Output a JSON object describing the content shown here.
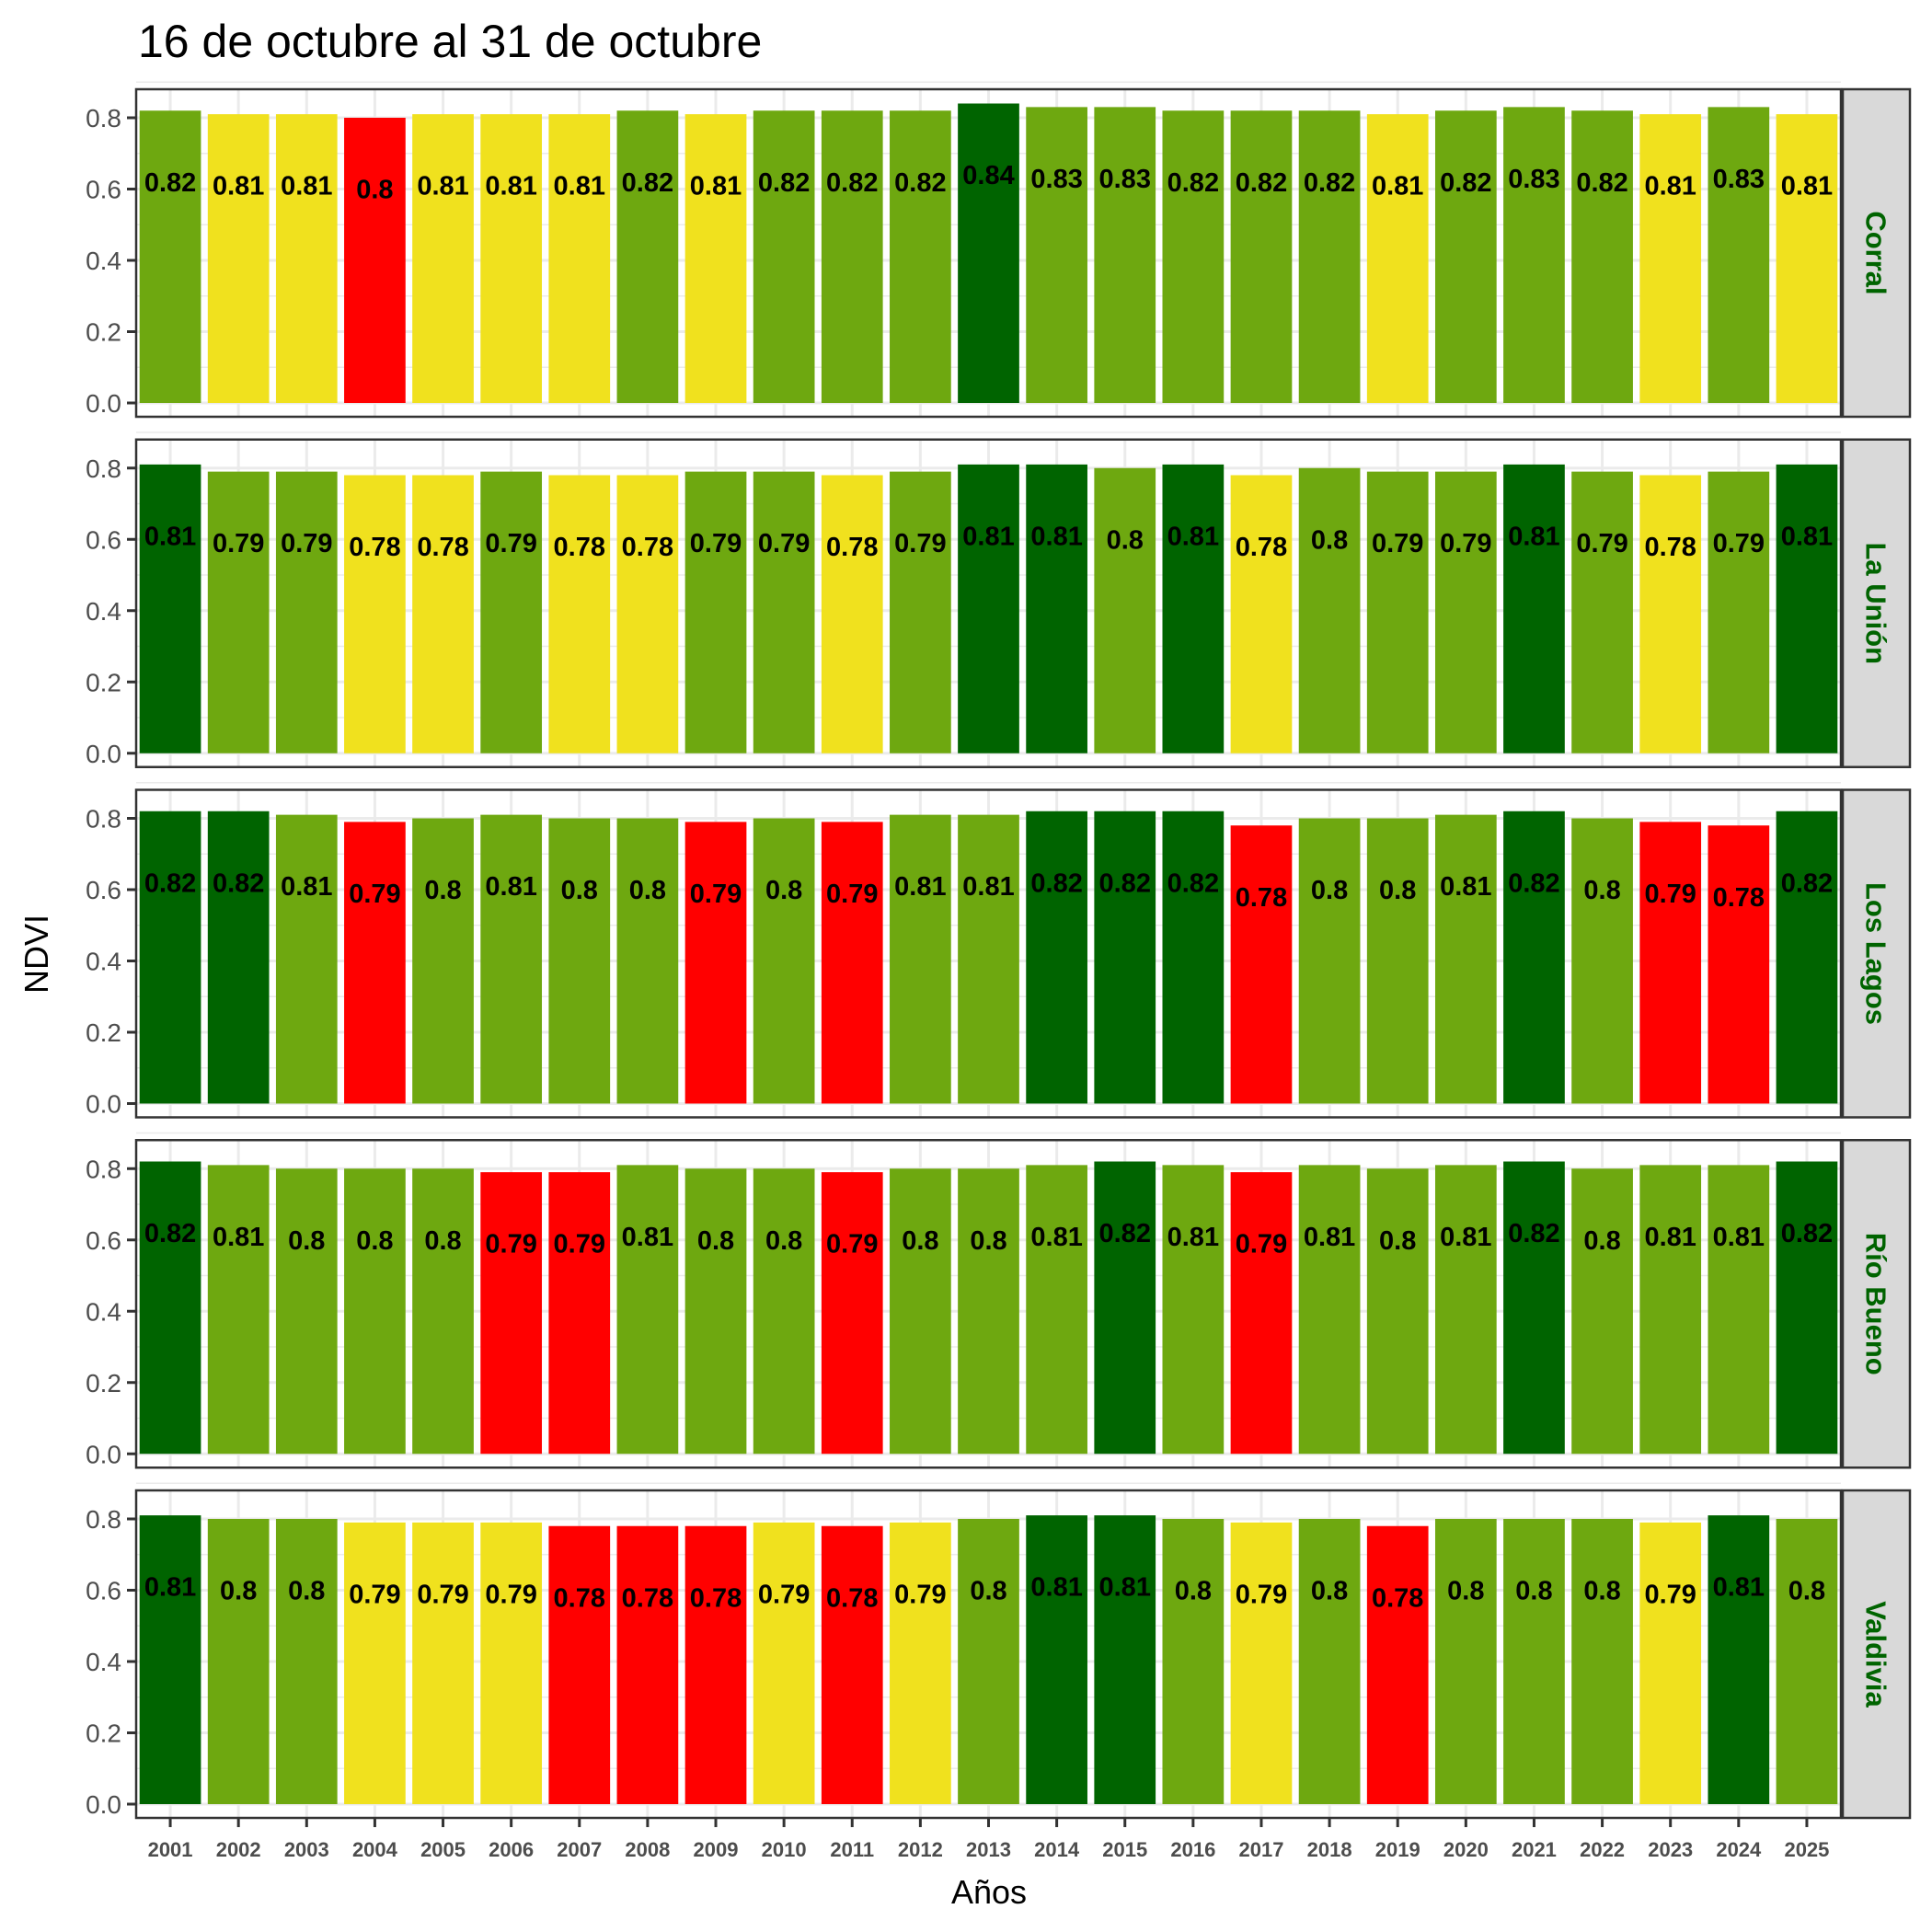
{
  "chart_data": {
    "type": "bar",
    "title": "16 de octubre al 31 de octubre",
    "xlabel": "Años",
    "ylabel": "NDVI",
    "ylim": [
      0,
      0.875
    ],
    "yticks": [
      "0.0",
      "0.2",
      "0.4",
      "0.6",
      "0.8"
    ],
    "ytick_values": [
      0,
      0.2,
      0.4,
      0.6,
      0.8
    ],
    "grid": true,
    "facet": "rows",
    "categories": [
      "2001",
      "2002",
      "2003",
      "2004",
      "2005",
      "2006",
      "2007",
      "2008",
      "2009",
      "2010",
      "2011",
      "2012",
      "2013",
      "2014",
      "2015",
      "2016",
      "2017",
      "2018",
      "2019",
      "2020",
      "2021",
      "2022",
      "2023",
      "2024",
      "2025"
    ],
    "colors": {
      "dark_green": "#006400",
      "green": "#6ea810",
      "yellow": "#f0e11e",
      "red": "#ff0000"
    },
    "series": [
      {
        "name": "Corral",
        "values": [
          0.82,
          0.81,
          0.81,
          0.8,
          0.81,
          0.81,
          0.81,
          0.82,
          0.81,
          0.82,
          0.82,
          0.82,
          0.84,
          0.83,
          0.83,
          0.82,
          0.82,
          0.82,
          0.81,
          0.82,
          0.83,
          0.82,
          0.81,
          0.83,
          0.81
        ],
        "labels": [
          "0.82",
          "0.81",
          "0.81",
          "0.8",
          "0.81",
          "0.81",
          "0.81",
          "0.82",
          "0.81",
          "0.82",
          "0.82",
          "0.82",
          "0.84",
          "0.83",
          "0.83",
          "0.82",
          "0.82",
          "0.82",
          "0.81",
          "0.82",
          "0.83",
          "0.82",
          "0.81",
          "0.83",
          "0.81"
        ],
        "color_classes": [
          "green",
          "yellow",
          "yellow",
          "red",
          "yellow",
          "yellow",
          "yellow",
          "green",
          "yellow",
          "green",
          "green",
          "green",
          "dark_green",
          "green",
          "green",
          "green",
          "green",
          "green",
          "yellow",
          "green",
          "green",
          "green",
          "yellow",
          "green",
          "yellow"
        ]
      },
      {
        "name": "La Unión",
        "values": [
          0.81,
          0.79,
          0.79,
          0.78,
          0.78,
          0.79,
          0.78,
          0.78,
          0.79,
          0.79,
          0.78,
          0.79,
          0.81,
          0.81,
          0.8,
          0.81,
          0.78,
          0.8,
          0.79,
          0.79,
          0.81,
          0.79,
          0.78,
          0.79,
          0.81
        ],
        "labels": [
          "0.81",
          "0.79",
          "0.79",
          "0.78",
          "0.78",
          "0.79",
          "0.78",
          "0.78",
          "0.79",
          "0.79",
          "0.78",
          "0.79",
          "0.81",
          "0.81",
          "0.8",
          "0.81",
          "0.78",
          "0.8",
          "0.79",
          "0.79",
          "0.81",
          "0.79",
          "0.78",
          "0.79",
          "0.81"
        ],
        "color_classes": [
          "dark_green",
          "green",
          "green",
          "yellow",
          "yellow",
          "green",
          "yellow",
          "yellow",
          "green",
          "green",
          "yellow",
          "green",
          "dark_green",
          "dark_green",
          "green",
          "dark_green",
          "yellow",
          "green",
          "green",
          "green",
          "dark_green",
          "green",
          "yellow",
          "green",
          "dark_green"
        ]
      },
      {
        "name": "Los Lagos",
        "values": [
          0.82,
          0.82,
          0.81,
          0.79,
          0.8,
          0.81,
          0.8,
          0.8,
          0.79,
          0.8,
          0.79,
          0.81,
          0.81,
          0.82,
          0.82,
          0.82,
          0.78,
          0.8,
          0.8,
          0.81,
          0.82,
          0.8,
          0.79,
          0.78,
          0.82
        ],
        "labels": [
          "0.82",
          "0.82",
          "0.81",
          "0.79",
          "0.8",
          "0.81",
          "0.8",
          "0.8",
          "0.79",
          "0.8",
          "0.79",
          "0.81",
          "0.81",
          "0.82",
          "0.82",
          "0.82",
          "0.78",
          "0.8",
          "0.8",
          "0.81",
          "0.82",
          "0.8",
          "0.79",
          "0.78",
          "0.82"
        ],
        "color_classes": [
          "dark_green",
          "dark_green",
          "green",
          "red",
          "green",
          "green",
          "green",
          "green",
          "red",
          "green",
          "red",
          "green",
          "green",
          "dark_green",
          "dark_green",
          "dark_green",
          "red",
          "green",
          "green",
          "green",
          "dark_green",
          "green",
          "red",
          "red",
          "dark_green"
        ]
      },
      {
        "name": "Río Bueno",
        "values": [
          0.82,
          0.81,
          0.8,
          0.8,
          0.8,
          0.79,
          0.79,
          0.81,
          0.8,
          0.8,
          0.79,
          0.8,
          0.8,
          0.81,
          0.82,
          0.81,
          0.79,
          0.81,
          0.8,
          0.81,
          0.82,
          0.8,
          0.81,
          0.81,
          0.82
        ],
        "labels": [
          "0.82",
          "0.81",
          "0.8",
          "0.8",
          "0.8",
          "0.79",
          "0.79",
          "0.81",
          "0.8",
          "0.8",
          "0.79",
          "0.8",
          "0.8",
          "0.81",
          "0.82",
          "0.81",
          "0.79",
          "0.81",
          "0.8",
          "0.81",
          "0.82",
          "0.8",
          "0.81",
          "0.81",
          "0.82"
        ],
        "color_classes": [
          "dark_green",
          "green",
          "green",
          "green",
          "green",
          "red",
          "red",
          "green",
          "green",
          "green",
          "red",
          "green",
          "green",
          "green",
          "dark_green",
          "green",
          "red",
          "green",
          "green",
          "green",
          "dark_green",
          "green",
          "green",
          "green",
          "dark_green"
        ]
      },
      {
        "name": "Valdivia",
        "values": [
          0.81,
          0.8,
          0.8,
          0.79,
          0.79,
          0.79,
          0.78,
          0.78,
          0.78,
          0.79,
          0.78,
          0.79,
          0.8,
          0.81,
          0.81,
          0.8,
          0.79,
          0.8,
          0.78,
          0.8,
          0.8,
          0.8,
          0.79,
          0.81,
          0.8
        ],
        "labels": [
          "0.81",
          "0.8",
          "0.8",
          "0.79",
          "0.79",
          "0.79",
          "0.78",
          "0.78",
          "0.78",
          "0.79",
          "0.78",
          "0.79",
          "0.8",
          "0.81",
          "0.81",
          "0.8",
          "0.79",
          "0.8",
          "0.78",
          "0.8",
          "0.8",
          "0.8",
          "0.79",
          "0.81",
          "0.8"
        ],
        "color_classes": [
          "dark_green",
          "green",
          "green",
          "yellow",
          "yellow",
          "yellow",
          "red",
          "red",
          "red",
          "yellow",
          "red",
          "yellow",
          "green",
          "dark_green",
          "dark_green",
          "green",
          "yellow",
          "green",
          "red",
          "green",
          "green",
          "green",
          "yellow",
          "dark_green",
          "green"
        ]
      }
    ]
  }
}
